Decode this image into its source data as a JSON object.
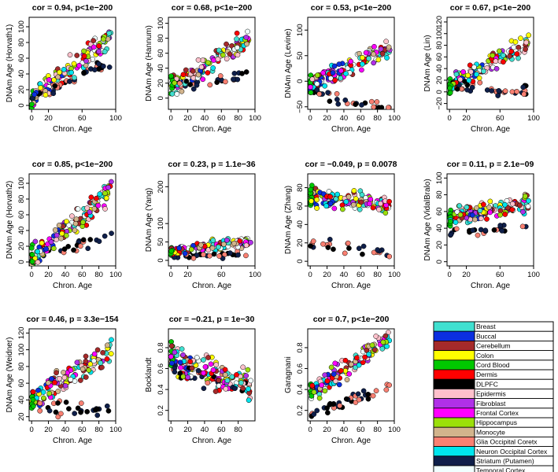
{
  "chart_data": [
    {
      "type": "scatter",
      "title": "cor = 0.94, p<1e−200",
      "xlabel": "Chron. Age",
      "ylabel": "DNAm Age (Horvath1)",
      "xlim": [
        -3,
        100
      ],
      "ylim": [
        -5,
        112
      ],
      "xticks": [
        0,
        20,
        60,
        100
      ],
      "yticks": [
        0,
        20,
        40,
        60,
        80,
        100
      ],
      "model": {
        "slope": 0.85,
        "intercept": 8,
        "noise": 11,
        "glia_slope": 0.45,
        "glia_int": 12
      }
    },
    {
      "type": "scatter",
      "title": "cor = 0.68, p<1e−200",
      "xlabel": "Chron. Age",
      "ylabel": "DNAm Age (Hannum)",
      "xlim": [
        -3,
        100
      ],
      "ylim": [
        -15,
        108
      ],
      "xticks": [
        0,
        20,
        40,
        60,
        80,
        100
      ],
      "yticks": [
        0,
        20,
        40,
        60,
        80,
        100
      ],
      "model": {
        "slope": 0.7,
        "intercept": 15,
        "noise": 12,
        "glia_slope": 0.2,
        "glia_int": 15
      }
    },
    {
      "type": "scatter",
      "title": "cor = 0.53, p<1e−200",
      "xlabel": "Chron. Age",
      "ylabel": "DNAm Age (Levine)",
      "xlim": [
        -3,
        100
      ],
      "ylim": [
        -55,
        125
      ],
      "xticks": [
        0,
        20,
        40,
        60,
        80,
        100
      ],
      "yticks": [
        -50,
        0,
        50,
        100
      ],
      "model": {
        "slope": 0.8,
        "intercept": -10,
        "noise": 16,
        "glia_slope": -0.4,
        "glia_int": -20
      }
    },
    {
      "type": "scatter",
      "title": "cor = 0.67, p<1e−200",
      "xlabel": "Chron. Age",
      "ylabel": "DNAm Age (Lin)",
      "xlim": [
        -3,
        100
      ],
      "ylim": [
        -30,
        128
      ],
      "xticks": [
        0,
        20,
        60,
        100
      ],
      "yticks": [
        -20,
        0,
        20,
        40,
        60,
        80,
        100,
        120
      ],
      "model": {
        "slope": 0.8,
        "intercept": 10,
        "noise": 14,
        "glia_slope": -0.1,
        "glia_int": 10
      }
    },
    {
      "type": "scatter",
      "title": "cor = 0.85, p<1e−200",
      "xlabel": "Chron. Age",
      "ylabel": "DNAm Age (Horvath2)",
      "xlim": [
        -3,
        100
      ],
      "ylim": [
        -5,
        112
      ],
      "xticks": [
        0,
        20,
        40,
        60,
        80,
        100
      ],
      "yticks": [
        0,
        20,
        40,
        60,
        80,
        100
      ],
      "model": {
        "slope": 0.9,
        "intercept": 5,
        "noise": 11,
        "glia_slope": 0.3,
        "glia_int": 5
      }
    },
    {
      "type": "scatter",
      "title": "cor = 0.23, p = 1.1e−36",
      "xlabel": "Chron. Age",
      "ylabel": "DNAm Age (Yang)",
      "xlim": [
        -3,
        100
      ],
      "ylim": [
        -15,
        235
      ],
      "xticks": [
        0,
        20,
        60,
        100
      ],
      "yticks": [
        0,
        50,
        100,
        200
      ],
      "model": {
        "slope": 0.3,
        "intercept": 25,
        "noise": 14,
        "glia_slope": 0.1,
        "glia_int": 10
      }
    },
    {
      "type": "scatter",
      "title": "cor = −0.049, p = 0.0078",
      "xlabel": "Chron. Age",
      "ylabel": "DNAm Age (Zhang)",
      "xlim": [
        -3,
        100
      ],
      "ylim": [
        -5,
        95
      ],
      "xticks": [
        0,
        20,
        40,
        60,
        80,
        100
      ],
      "yticks": [
        0,
        20,
        40,
        60,
        80
      ],
      "model": {
        "slope": -0.1,
        "intercept": 70,
        "noise": 9,
        "glia_slope": -0.1,
        "glia_int": 20
      }
    },
    {
      "type": "scatter",
      "title": "cor = 0.11, p = 2.1e−09",
      "xlabel": "Chron. Age",
      "ylabel": "DNAm Age (VidalBralo)",
      "xlim": [
        -3,
        100
      ],
      "ylim": [
        -5,
        105
      ],
      "xticks": [
        0,
        20,
        60,
        100
      ],
      "yticks": [
        0,
        20,
        40,
        60,
        80,
        100
      ],
      "model": {
        "slope": 0.15,
        "intercept": 55,
        "noise": 9,
        "glia_slope": 0.05,
        "glia_int": 35
      }
    },
    {
      "type": "scatter",
      "title": "cor = 0.46, p = 3.3e−154",
      "xlabel": "Chron. Age",
      "ylabel": "DNAm Age (Weidner)",
      "xlim": [
        -3,
        100
      ],
      "ylim": [
        15,
        125
      ],
      "xticks": [
        0,
        20,
        40,
        60,
        80,
        100
      ],
      "yticks": [
        20,
        40,
        60,
        80,
        100,
        120
      ],
      "model": {
        "slope": 0.6,
        "intercept": 40,
        "noise": 14,
        "glia_slope": -0.05,
        "glia_int": 33
      }
    },
    {
      "type": "scatter",
      "title": "cor = −0.21, p = 1e−30",
      "xlabel": "Chron. Age",
      "ylabel": "Bocklandt",
      "xlim": [
        -3,
        100
      ],
      "ylim": [
        0.1,
        0.98
      ],
      "xticks": [
        0,
        20,
        40,
        60,
        80
      ],
      "yticks": [
        0.2,
        0.4,
        0.6,
        0.8
      ],
      "model": {
        "slope": -0.003,
        "intercept": 0.7,
        "noise": 0.12,
        "glia_slope": -0.002,
        "glia_int": 0.6
      }
    },
    {
      "type": "scatter",
      "title": "cor = 0.7, p<1e−200",
      "xlabel": "Chron. Age",
      "ylabel": "Garagnani",
      "xlim": [
        -3,
        100
      ],
      "ylim": [
        0.1,
        0.98
      ],
      "xticks": [
        0,
        20,
        40,
        60,
        80,
        100
      ],
      "yticks": [
        0.2,
        0.4,
        0.6,
        0.8
      ],
      "model": {
        "slope": 0.006,
        "intercept": 0.35,
        "noise": 0.08,
        "glia_slope": 0.003,
        "glia_int": 0.15
      }
    }
  ],
  "legend": {
    "entries": [
      {
        "name": "Breast",
        "color": "#40e0d0"
      },
      {
        "name": "Buccal",
        "color": "#0b2fe0"
      },
      {
        "name": "Cerebellum",
        "color": "#a52a2a"
      },
      {
        "name": "Colon",
        "color": "#ffff00"
      },
      {
        "name": "Cord Blood",
        "color": "#00c800"
      },
      {
        "name": "Dermis",
        "color": "#ff0000"
      },
      {
        "name": "DLPFC",
        "color": "#000000"
      },
      {
        "name": "Epidermis",
        "color": "#ffc0cb"
      },
      {
        "name": "Fibroblast",
        "color": "#b030e8"
      },
      {
        "name": "Frontal Cortex",
        "color": "#ff00ff"
      },
      {
        "name": "Hippocampus",
        "color": "#9be00a"
      },
      {
        "name": "Monocyte",
        "color": "#d2b48c"
      },
      {
        "name": "Glia Occipital Coretx",
        "color": "#fa8072"
      },
      {
        "name": "Neuron Occipital Cortex",
        "color": "#00e5ee"
      },
      {
        "name": "Striatum (Putamen)",
        "color": "#0f1f4a"
      },
      {
        "name": "Temporal Cortex",
        "color": "#f0ffff"
      }
    ]
  }
}
